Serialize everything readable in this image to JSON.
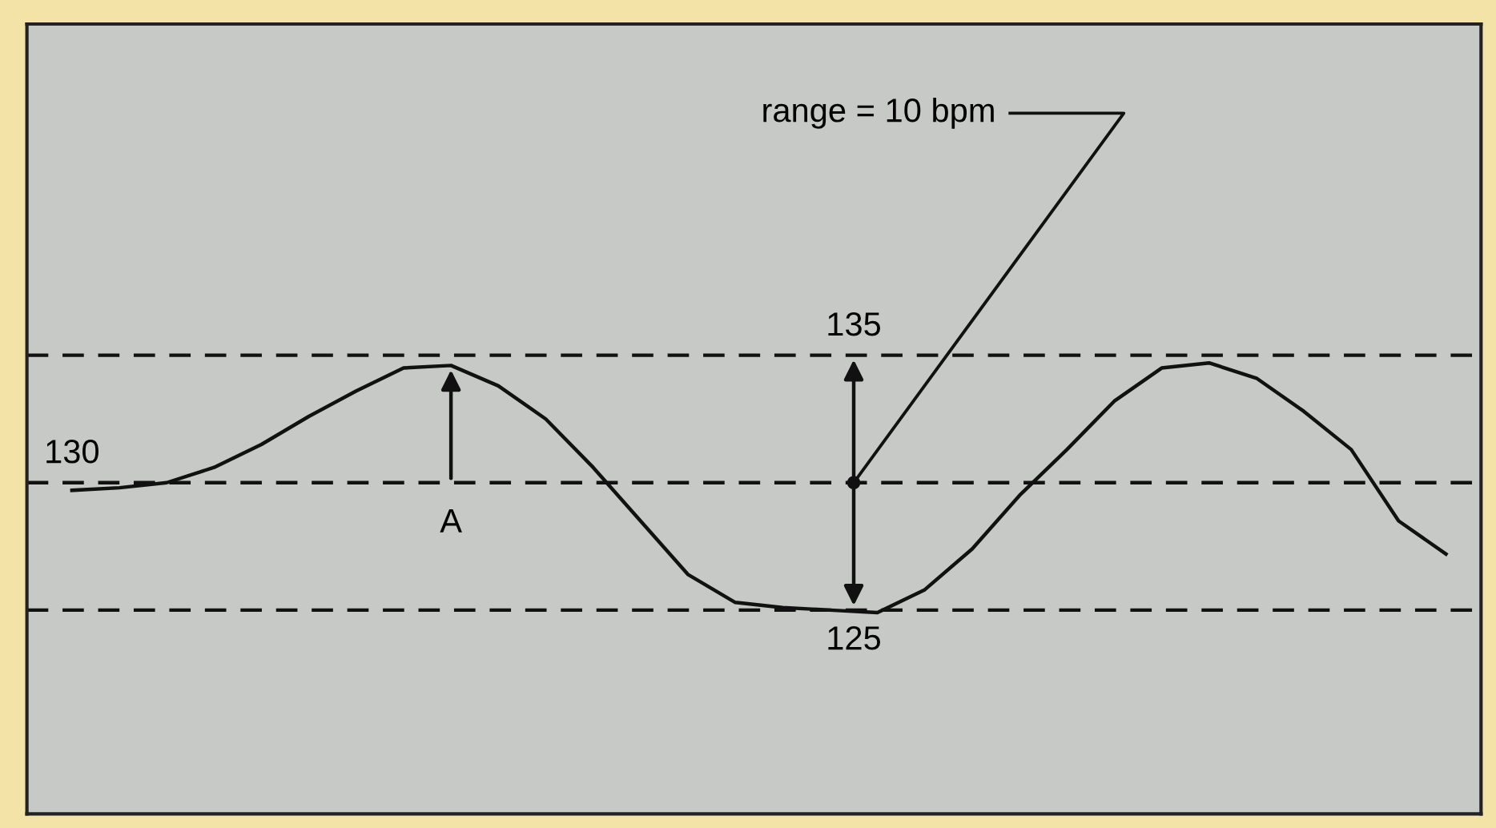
{
  "chart_data": {
    "type": "line",
    "categories": [
      null,
      null,
      null,
      null,
      null,
      null,
      null,
      null,
      null,
      null,
      null,
      null,
      null,
      null,
      null,
      null,
      null,
      null,
      null,
      null,
      null,
      null,
      null,
      null,
      null,
      null,
      null,
      null,
      null,
      null
    ],
    "series": [
      {
        "color": "#111111",
        "values": [
          129.7,
          129.8,
          130.0,
          130.6,
          131.5,
          132.6,
          133.6,
          134.5,
          134.6,
          133.8,
          132.5,
          130.6,
          128.5,
          126.4,
          125.3,
          125.1,
          125.0,
          124.9,
          125.8,
          127.4,
          129.5,
          131.3,
          133.2,
          134.5,
          134.7,
          134.1,
          132.8,
          131.3,
          128.5,
          127.2
        ]
      }
    ],
    "ylim": [
      117,
      148
    ],
    "legend": false,
    "marker": "none",
    "line_style": "solid",
    "ref_lines": [
      {
        "axis": "y",
        "value": 130,
        "label": "130",
        "line_style": "dashed",
        "color": "#111111"
      },
      {
        "axis": "y",
        "value": 135,
        "label": "135",
        "line_style": "dashed",
        "color": "#111111"
      },
      {
        "axis": "y",
        "value": 125,
        "label": "125",
        "line_style": "dashed",
        "color": "#111111"
      }
    ],
    "annotations": [
      "range = 10 bpm",
      "A"
    ]
  }
}
